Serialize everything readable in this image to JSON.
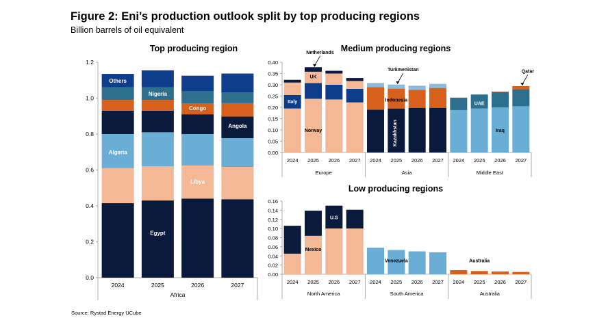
{
  "header": {
    "title": "Figure 2: Eni’s production outlook split by top producing regions",
    "subtitle": "Billion barrels of oil equivalent"
  },
  "footer": {
    "source": "Source: Rystad Energy UCube"
  },
  "colors": {
    "navy": "#0a1a3c",
    "peach": "#f4b896",
    "blue": "#0e3d8c",
    "orange": "#d7601c",
    "teal": "#2e6f8e",
    "lightblue": "#6aaed6",
    "paleblue": "#8bbbdb"
  },
  "chart_data": [
    {
      "type": "bar",
      "stacked": true,
      "title": "Top producing region",
      "categories": [
        "2024",
        "2025",
        "2026",
        "2027"
      ],
      "group": "Africa",
      "ylim": [
        0,
        1.2
      ],
      "yticks": [
        "0.0",
        "0.2",
        "0.4",
        "0.6",
        "0.8",
        "1.0",
        "1.2"
      ],
      "series": [
        {
          "name": "Egypt",
          "color": "navy",
          "values": [
            0.415,
            0.43,
            0.44,
            0.437
          ]
        },
        {
          "name": "Libya",
          "color": "peach",
          "values": [
            0.195,
            0.19,
            0.185,
            0.18
          ]
        },
        {
          "name": "Algeria",
          "color": "lightblue",
          "values": [
            0.19,
            0.19,
            0.175,
            0.16
          ]
        },
        {
          "name": "Angola",
          "color": "navy",
          "values": [
            0.13,
            0.12,
            0.11,
            0.12
          ]
        },
        {
          "name": "Congo",
          "color": "orange",
          "values": [
            0.06,
            0.06,
            0.06,
            0.075
          ]
        },
        {
          "name": "Nigeria",
          "color": "teal",
          "values": [
            0.07,
            0.07,
            0.07,
            0.06
          ]
        },
        {
          "name": "Others",
          "color": "blue",
          "values": [
            0.075,
            0.095,
            0.085,
            0.105
          ]
        }
      ],
      "labels": [
        {
          "text": "Egypt",
          "bar": 1,
          "y": 0.25,
          "color": "#ffffff"
        },
        {
          "text": "Libya",
          "bar": 2,
          "y": 0.535,
          "color": "#ffffff"
        },
        {
          "text": "Algeria",
          "bar": 0,
          "y": 0.7,
          "color": "#ffffff"
        },
        {
          "text": "Angola",
          "bar": 3,
          "y": 0.845,
          "color": "#ffffff"
        },
        {
          "text": "Congo",
          "bar": 2,
          "y": 0.945,
          "color": "#ffffff"
        },
        {
          "text": "Nigeria",
          "bar": 1,
          "y": 1.025,
          "color": "#ffffff"
        },
        {
          "text": "Others",
          "bar": 0,
          "y": 1.098,
          "color": "#ffffff"
        }
      ]
    },
    {
      "type": "bar",
      "stacked": true,
      "title": "Medium producing regions",
      "categories": [
        "2024",
        "2025",
        "2026",
        "2027",
        "2024",
        "2025",
        "2026",
        "2027",
        "2024",
        "2025",
        "2026",
        "2027"
      ],
      "groups": [
        "Europe",
        "Asia",
        "Middle East"
      ],
      "ylim": [
        0,
        0.4
      ],
      "yticks": [
        "0.00",
        "0.05",
        "0.10",
        "0.15",
        "0.20",
        "0.25",
        "0.30",
        "0.35",
        "0.40"
      ],
      "series": [
        {
          "name": "Norway",
          "color": "peach",
          "values": [
            0.195,
            0.238,
            0.235,
            0.222,
            0,
            0,
            0,
            0,
            0,
            0,
            0,
            0
          ]
        },
        {
          "name": "Italy",
          "color": "blue",
          "values": [
            0.06,
            0.07,
            0.065,
            0.06,
            0,
            0,
            0,
            0,
            0,
            0,
            0,
            0
          ]
        },
        {
          "name": "UK",
          "color": "peach",
          "values": [
            0.055,
            0.05,
            0.05,
            0.035,
            0,
            0,
            0,
            0,
            0,
            0,
            0,
            0
          ]
        },
        {
          "name": "Netherlands",
          "color": "navy",
          "values": [
            0.012,
            0.02,
            0.012,
            0.013,
            0,
            0,
            0,
            0,
            0,
            0,
            0,
            0
          ]
        },
        {
          "name": "Kazakhstan",
          "color": "navy",
          "values": [
            0,
            0,
            0,
            0,
            0.19,
            0.195,
            0.198,
            0.198,
            0,
            0,
            0,
            0
          ]
        },
        {
          "name": "Indonesia",
          "color": "orange",
          "values": [
            0,
            0,
            0,
            0,
            0.1,
            0.088,
            0.08,
            0.088,
            0,
            0,
            0,
            0
          ]
        },
        {
          "name": "Turkmenistan",
          "color": "paleblue",
          "values": [
            0,
            0,
            0,
            0,
            0.018,
            0.018,
            0.018,
            0.018,
            0,
            0,
            0,
            0
          ]
        },
        {
          "name": "Iraq",
          "color": "lightblue",
          "values": [
            0,
            0,
            0,
            0,
            0,
            0,
            0,
            0,
            0.188,
            0.195,
            0.2,
            0.205
          ]
        },
        {
          "name": "UAE",
          "color": "teal",
          "values": [
            0,
            0,
            0,
            0,
            0,
            0,
            0,
            0,
            0.055,
            0.062,
            0.068,
            0.075
          ]
        },
        {
          "name": "Qatar",
          "color": "orange",
          "values": [
            0,
            0,
            0,
            0,
            0,
            0,
            0,
            0,
            0,
            0,
            0.002,
            0.014
          ]
        }
      ],
      "labels": [
        {
          "text": "Norway",
          "bar": 1,
          "y": 0.1,
          "color": "#000000"
        },
        {
          "text": "Italy",
          "bar": 0,
          "y": 0.228,
          "color": "#ffffff"
        },
        {
          "text": "UK",
          "bar": 1,
          "y": 0.338,
          "color": "#000000"
        },
        {
          "text": "Kazakhstan",
          "bar": 5,
          "y": 0.095,
          "color": "#ffffff",
          "rotate": true
        },
        {
          "text": "Indonesia",
          "bar": 5,
          "y": 0.235,
          "color": "#000000"
        },
        {
          "text": "UAE",
          "bar": 9,
          "y": 0.22,
          "color": "#ffffff"
        },
        {
          "text": "Iraq",
          "bar": 10,
          "y": 0.1,
          "color": "#000000"
        }
      ],
      "callouts": [
        {
          "text": "Netherlands",
          "bar": 1,
          "y": 0.376
        },
        {
          "text": "Turkmenistan",
          "bar": 5,
          "y": 0.3
        },
        {
          "text": "Qatar",
          "bar": 11,
          "y": 0.293
        }
      ]
    },
    {
      "type": "bar",
      "stacked": true,
      "title": "Low producing regions",
      "categories": [
        "2024",
        "2025",
        "2026",
        "2027",
        "2024",
        "2025",
        "2026",
        "2027",
        "2024",
        "2025",
        "2026",
        "2027"
      ],
      "groups": [
        "North America",
        "South America",
        "Australia"
      ],
      "ylim": [
        0,
        0.16
      ],
      "yticks": [
        "0.00",
        "0.02",
        "0.04",
        "0.06",
        "0.08",
        "0.10",
        "0.12",
        "0.14",
        "0.16"
      ],
      "series": [
        {
          "name": "Mexico",
          "color": "peach",
          "values": [
            0.045,
            0.084,
            0.1,
            0.1,
            0,
            0,
            0,
            0,
            0,
            0,
            0,
            0
          ]
        },
        {
          "name": "U.S",
          "color": "navy",
          "values": [
            0.061,
            0.055,
            0.05,
            0.041,
            0,
            0,
            0,
            0,
            0,
            0,
            0,
            0
          ]
        },
        {
          "name": "Venezuela",
          "color": "lightblue",
          "values": [
            0,
            0,
            0,
            0,
            0.058,
            0.053,
            0.05,
            0.048,
            0,
            0,
            0,
            0
          ]
        },
        {
          "name": "Australia",
          "color": "orange",
          "values": [
            0,
            0,
            0,
            0,
            0,
            0,
            0,
            0,
            0.009,
            0.007,
            0.006,
            0.005
          ]
        }
      ],
      "labels": [
        {
          "text": "Mexico",
          "bar": 1,
          "y": 0.055,
          "color": "#000000"
        },
        {
          "text": "U.S",
          "bar": 2,
          "y": 0.125,
          "color": "#ffffff"
        },
        {
          "text": "Venezuela",
          "bar": 5,
          "y": 0.031,
          "color": "#000000"
        },
        {
          "text": "Australia",
          "bar": 9,
          "y": 0.031,
          "color": "#000000"
        }
      ]
    }
  ]
}
